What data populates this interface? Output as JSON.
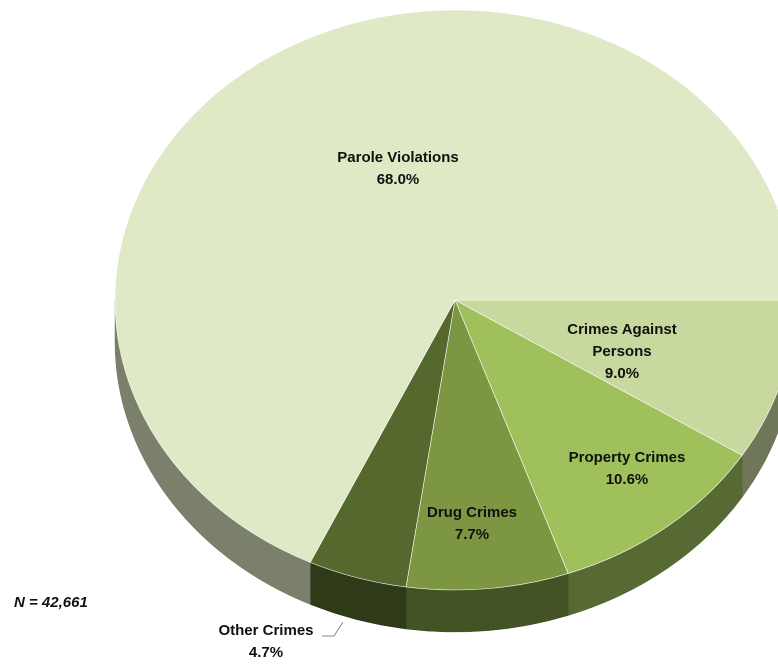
{
  "chart_data": {
    "type": "pie",
    "categories": [
      "Crimes Against Persons",
      "Property Crimes",
      "Drug Crimes",
      "Other Crimes",
      "Parole Violations"
    ],
    "values": [
      9.0,
      10.6,
      7.7,
      4.7,
      68.0
    ],
    "value_labels": [
      "9.0%",
      "10.6%",
      "7.7%",
      "4.7%",
      "68.0%"
    ],
    "colors": [
      "#c8d9a0",
      "#a0c05c",
      "#7c9642",
      "#55692e",
      "#dfe9c6"
    ],
    "annotation": "N = 42,661"
  }
}
